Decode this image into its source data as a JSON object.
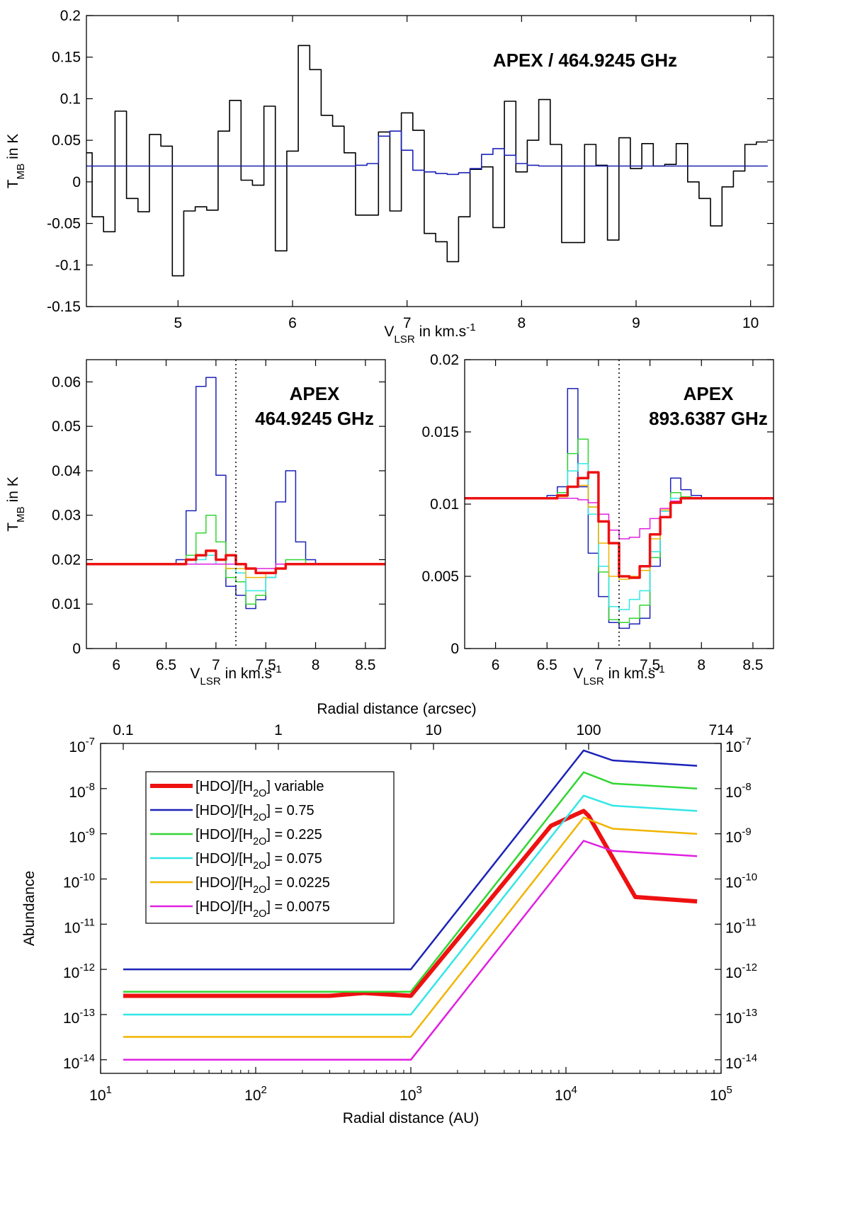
{
  "chart_data": [
    {
      "id": "top",
      "type": "line",
      "step": true,
      "title": "APEX / 464.9245 GHz",
      "xlabel": "V_LSR in km.s^-1",
      "ylabel": "T_MB in K",
      "xlim": [
        4.2,
        10.2
      ],
      "ylim": [
        -0.15,
        0.2
      ],
      "xticks": [
        5,
        6,
        7,
        8,
        9,
        10
      ],
      "xtick_labels": [
        "5",
        "6",
        "7",
        "8",
        "9",
        "10"
      ],
      "yticks": [
        -0.15,
        -0.1,
        -0.05,
        0,
        0.05,
        0.1,
        0.15,
        0.2
      ],
      "ytick_labels": [
        "-0.15",
        "-0.1",
        "-0.05",
        "0",
        "0.05",
        "0.1",
        "0.15",
        "0.2"
      ],
      "grid": false,
      "series": [
        {
          "color": "#000000",
          "x": [
            4.15,
            4.25,
            4.35,
            4.45,
            4.55,
            4.65,
            4.75,
            4.85,
            4.95,
            5.05,
            5.15,
            5.25,
            5.35,
            5.45,
            5.55,
            5.65,
            5.75,
            5.85,
            5.95,
            6.05,
            6.15,
            6.25,
            6.35,
            6.45,
            6.55,
            6.65,
            6.75,
            6.85,
            6.95,
            7.05,
            7.15,
            7.25,
            7.35,
            7.45,
            7.55,
            7.65,
            7.75,
            7.85,
            7.95,
            8.05,
            8.15,
            8.25,
            8.35,
            8.45,
            8.55,
            8.65,
            8.75,
            8.85,
            8.95,
            9.05,
            9.15,
            9.25,
            9.35,
            9.45,
            9.55,
            9.65,
            9.75,
            9.85,
            9.95,
            10.05,
            10.15
          ],
          "y": [
            0.035,
            -0.042,
            -0.06,
            0.085,
            -0.02,
            -0.036,
            0.057,
            0.043,
            -0.113,
            -0.035,
            -0.03,
            -0.034,
            0.061,
            0.098,
            0.002,
            -0.004,
            0.091,
            -0.083,
            0.037,
            0.164,
            0.135,
            0.08,
            0.067,
            0.035,
            -0.04,
            -0.04,
            0.06,
            -0.035,
            0.083,
            0.062,
            -0.062,
            -0.072,
            -0.096,
            -0.042,
            0.015,
            0.018,
            -0.055,
            0.097,
            0.012,
            0.05,
            0.099,
            0.045,
            -0.073,
            -0.073,
            0.045,
            0.02,
            -0.07,
            0.053,
            0.016,
            0.046,
            0.019,
            0.021,
            0.046,
            0.0,
            -0.02,
            -0.053,
            -0.006,
            0.013,
            0.045,
            0.048,
            0.046
          ]
        },
        {
          "color": "#1c22b8",
          "x": [
            4.15,
            4.25,
            4.35,
            4.45,
            4.55,
            4.65,
            4.75,
            4.85,
            4.95,
            5.05,
            5.15,
            5.25,
            5.35,
            5.45,
            5.55,
            5.65,
            5.75,
            5.85,
            5.95,
            6.05,
            6.15,
            6.25,
            6.35,
            6.45,
            6.55,
            6.65,
            6.75,
            6.85,
            6.95,
            7.05,
            7.15,
            7.25,
            7.35,
            7.45,
            7.55,
            7.65,
            7.75,
            7.85,
            7.95,
            8.05,
            8.15,
            8.25,
            8.35,
            8.45,
            8.55,
            8.65,
            8.75,
            8.85,
            8.95,
            9.05,
            9.15,
            9.25,
            9.35,
            9.45,
            9.55,
            9.65,
            9.75,
            9.85,
            9.95,
            10.05,
            10.15
          ],
          "y": [
            0.019,
            0.019,
            0.019,
            0.019,
            0.019,
            0.019,
            0.019,
            0.019,
            0.019,
            0.019,
            0.019,
            0.019,
            0.019,
            0.019,
            0.019,
            0.019,
            0.019,
            0.019,
            0.019,
            0.019,
            0.019,
            0.019,
            0.019,
            0.019,
            0.02,
            0.022,
            0.055,
            0.061,
            0.038,
            0.014,
            0.012,
            0.01,
            0.009,
            0.011,
            0.016,
            0.033,
            0.04,
            0.032,
            0.022,
            0.02,
            0.019,
            0.019,
            0.019,
            0.019,
            0.019,
            0.019,
            0.019,
            0.019,
            0.019,
            0.019,
            0.019,
            0.019,
            0.019,
            0.019,
            0.019,
            0.019,
            0.019,
            0.019,
            0.019,
            0.019,
            0.019
          ]
        }
      ]
    },
    {
      "id": "midleft",
      "type": "line",
      "step": true,
      "annotation": [
        "APEX",
        "464.9245 GHz"
      ],
      "xlabel": "V_LSR in km.s^-1",
      "ylabel": "T_MB in K",
      "xlim": [
        5.7,
        8.7
      ],
      "ylim": [
        0,
        0.065
      ],
      "xticks": [
        6,
        6.5,
        7,
        7.5,
        8,
        8.5
      ],
      "xtick_labels": [
        "6",
        "6.5",
        "7",
        "7.5",
        "8",
        "8.5"
      ],
      "yticks": [
        0,
        0.01,
        0.02,
        0.03,
        0.04,
        0.05,
        0.06
      ],
      "ytick_labels": [
        "0",
        "0.01",
        "0.02",
        "0.03",
        "0.04",
        "0.05",
        "0.06"
      ],
      "vline": 7.2,
      "grid": false,
      "series": [
        {
          "color": "#1c22b8",
          "width": 1.5,
          "x": [
            5.7,
            6.6,
            6.7,
            6.8,
            6.9,
            7.0,
            7.1,
            7.2,
            7.3,
            7.4,
            7.5,
            7.6,
            7.7,
            7.8,
            7.9,
            8.0,
            8.7
          ],
          "y": [
            0.019,
            0.02,
            0.031,
            0.059,
            0.061,
            0.039,
            0.014,
            0.012,
            0.009,
            0.011,
            0.016,
            0.033,
            0.04,
            0.024,
            0.02,
            0.019,
            0.019
          ]
        },
        {
          "color": "#33d633",
          "width": 1.5,
          "x": [
            5.7,
            6.6,
            6.7,
            6.8,
            6.9,
            7.0,
            7.1,
            7.2,
            7.3,
            7.4,
            7.5,
            7.6,
            7.7,
            7.8,
            7.9,
            8.0,
            8.7
          ],
          "y": [
            0.019,
            0.019,
            0.021,
            0.026,
            0.03,
            0.024,
            0.016,
            0.015,
            0.01,
            0.012,
            0.016,
            0.019,
            0.02,
            0.02,
            0.019,
            0.019,
            0.019
          ]
        },
        {
          "color": "#33e6e6",
          "width": 1.5,
          "x": [
            5.7,
            6.6,
            6.7,
            6.8,
            6.9,
            7.0,
            7.1,
            7.2,
            7.3,
            7.4,
            7.5,
            7.6,
            7.7,
            7.8,
            7.9,
            8.0,
            8.7
          ],
          "y": [
            0.019,
            0.019,
            0.019,
            0.02,
            0.021,
            0.019,
            0.018,
            0.017,
            0.013,
            0.013,
            0.016,
            0.019,
            0.019,
            0.019,
            0.019,
            0.019,
            0.019
          ]
        },
        {
          "color": "#f0b400",
          "width": 1.5,
          "x": [
            5.7,
            6.6,
            6.7,
            6.8,
            6.9,
            7.0,
            7.1,
            7.2,
            7.3,
            7.4,
            7.5,
            7.6,
            7.7,
            7.8,
            7.9,
            8.0,
            8.7
          ],
          "y": [
            0.019,
            0.019,
            0.019,
            0.019,
            0.019,
            0.019,
            0.018,
            0.018,
            0.016,
            0.016,
            0.017,
            0.018,
            0.019,
            0.019,
            0.019,
            0.019,
            0.019
          ]
        },
        {
          "color": "#e020e0",
          "width": 1.5,
          "x": [
            5.7,
            6.6,
            6.7,
            6.8,
            6.9,
            7.0,
            7.1,
            7.2,
            7.3,
            7.4,
            7.5,
            7.6,
            7.7,
            7.8,
            7.9,
            8.0,
            8.7
          ],
          "y": [
            0.019,
            0.019,
            0.019,
            0.019,
            0.019,
            0.019,
            0.019,
            0.019,
            0.018,
            0.018,
            0.018,
            0.019,
            0.019,
            0.019,
            0.019,
            0.019,
            0.019
          ]
        },
        {
          "color": "#ee1111",
          "width": 3.5,
          "x": [
            5.7,
            6.6,
            6.7,
            6.8,
            6.9,
            7.0,
            7.1,
            7.2,
            7.3,
            7.4,
            7.5,
            7.6,
            7.7,
            7.8,
            7.9,
            8.0,
            8.7
          ],
          "y": [
            0.019,
            0.019,
            0.02,
            0.021,
            0.022,
            0.02,
            0.021,
            0.019,
            0.018,
            0.017,
            0.017,
            0.018,
            0.019,
            0.019,
            0.019,
            0.019,
            0.019
          ]
        }
      ]
    },
    {
      "id": "midright",
      "type": "line",
      "step": true,
      "annotation": [
        "APEX",
        "893.6387 GHz"
      ],
      "xlabel": "V_LSR in km.s^-1",
      "ylabel": "",
      "xlim": [
        5.7,
        8.7
      ],
      "ylim": [
        0,
        0.02
      ],
      "xticks": [
        6,
        6.5,
        7,
        7.5,
        8,
        8.5
      ],
      "xtick_labels": [
        "6",
        "6.5",
        "7",
        "7.5",
        "8",
        "8.5"
      ],
      "yticks": [
        0,
        0.005,
        0.01,
        0.015,
        0.02
      ],
      "ytick_labels": [
        "0",
        "0.005",
        "0.01",
        "0.015",
        "0.02"
      ],
      "vline": 7.2,
      "grid": false,
      "series": [
        {
          "color": "#1c22b8",
          "width": 1.5,
          "x": [
            5.7,
            6.5,
            6.6,
            6.7,
            6.8,
            6.9,
            7.0,
            7.1,
            7.2,
            7.3,
            7.4,
            7.5,
            7.6,
            7.7,
            7.8,
            7.9,
            8.0,
            8.7
          ],
          "y": [
            0.0104,
            0.0106,
            0.0112,
            0.018,
            0.0112,
            0.0066,
            0.0036,
            0.0018,
            0.0014,
            0.0017,
            0.0021,
            0.0057,
            0.0096,
            0.0118,
            0.011,
            0.0106,
            0.0104,
            0.0104
          ]
        },
        {
          "color": "#33d633",
          "width": 1.5,
          "x": [
            5.7,
            6.5,
            6.6,
            6.7,
            6.8,
            6.9,
            7.0,
            7.1,
            7.2,
            7.3,
            7.4,
            7.5,
            7.6,
            7.7,
            7.8,
            7.9,
            8.0,
            8.7
          ],
          "y": [
            0.0104,
            0.0104,
            0.0108,
            0.0135,
            0.0145,
            0.0098,
            0.0053,
            0.002,
            0.0018,
            0.0021,
            0.003,
            0.0063,
            0.0095,
            0.0108,
            0.0105,
            0.0104,
            0.0104,
            0.0104
          ]
        },
        {
          "color": "#33e6e6",
          "width": 1.5,
          "x": [
            5.7,
            6.5,
            6.6,
            6.7,
            6.8,
            6.9,
            7.0,
            7.1,
            7.2,
            7.3,
            7.4,
            7.5,
            7.6,
            7.7,
            7.8,
            7.9,
            8.0,
            8.7
          ],
          "y": [
            0.0104,
            0.0104,
            0.0106,
            0.0123,
            0.0128,
            0.0093,
            0.0057,
            0.0029,
            0.0027,
            0.0034,
            0.004,
            0.0067,
            0.0095,
            0.0104,
            0.0104,
            0.0104,
            0.0104,
            0.0104
          ]
        },
        {
          "color": "#f0b400",
          "width": 1.5,
          "x": [
            5.7,
            6.5,
            6.6,
            6.7,
            6.8,
            6.9,
            7.0,
            7.1,
            7.2,
            7.3,
            7.4,
            7.5,
            7.6,
            7.7,
            7.8,
            7.9,
            8.0,
            8.7
          ],
          "y": [
            0.0104,
            0.0104,
            0.0105,
            0.0112,
            0.0113,
            0.0098,
            0.0073,
            0.005,
            0.0048,
            0.005,
            0.0054,
            0.0076,
            0.0096,
            0.0102,
            0.0104,
            0.0104,
            0.0104,
            0.0104
          ]
        },
        {
          "color": "#e020e0",
          "width": 1.5,
          "x": [
            5.7,
            6.5,
            6.6,
            6.7,
            6.8,
            6.9,
            7.0,
            7.1,
            7.2,
            7.3,
            7.4,
            7.5,
            7.6,
            7.7,
            7.8,
            7.9,
            8.0,
            8.7
          ],
          "y": [
            0.0104,
            0.0104,
            0.0104,
            0.0104,
            0.0103,
            0.0101,
            0.0093,
            0.0082,
            0.0076,
            0.0077,
            0.0083,
            0.009,
            0.0097,
            0.0102,
            0.0104,
            0.0104,
            0.0104,
            0.0104
          ]
        },
        {
          "color": "#ee1111",
          "width": 3.5,
          "x": [
            5.7,
            6.5,
            6.6,
            6.7,
            6.8,
            6.9,
            7.0,
            7.1,
            7.2,
            7.3,
            7.4,
            7.5,
            7.6,
            7.7,
            7.8,
            7.9,
            8.0,
            8.7
          ],
          "y": [
            0.0104,
            0.0104,
            0.0106,
            0.0112,
            0.0118,
            0.0122,
            0.0088,
            0.0073,
            0.005,
            0.0049,
            0.0057,
            0.0079,
            0.0091,
            0.0101,
            0.0104,
            0.0104,
            0.0104,
            0.0104
          ]
        }
      ]
    },
    {
      "id": "bottom",
      "type": "line",
      "log_x": true,
      "log_y": true,
      "xlabel": "Radial distance (AU)",
      "x2label": "Radial distance (arcsec)",
      "ylabel": "Abundance",
      "xlim": [
        10,
        100000
      ],
      "ylim": [
        5e-15,
        1e-07
      ],
      "xticks": [
        10,
        100,
        1000,
        10000,
        100000
      ],
      "xtick_labels": [
        "10^1",
        "10^2",
        "10^3",
        "10^4",
        "10^5"
      ],
      "x2ticks_au": [
        14,
        140,
        1400,
        14000,
        100000
      ],
      "x2tick_labels": [
        "0.1",
        "1",
        "10",
        "100",
        "714"
      ],
      "yticks": [
        1e-14,
        1e-13,
        1e-12,
        1e-11,
        1e-10,
        1e-09,
        1e-08,
        1e-07
      ],
      "ytick_labels": [
        "10^-14",
        "10^-13",
        "10^-12",
        "10^-11",
        "10^-10",
        "10^-9",
        "10^-8",
        "10^-7"
      ],
      "legend_position": "upper-left",
      "grid": false,
      "series": [
        {
          "name": "[HDO]/[H_2O] variable",
          "color": "#ee1111",
          "width": 6,
          "x": [
            14,
            300,
            500,
            1000,
            8000,
            13000,
            14000,
            28000,
            70000
          ],
          "y": [
            2.6e-13,
            2.6e-13,
            3e-13,
            2.6e-13,
            1.5e-09,
            3.2e-09,
            2.5e-09,
            4e-11,
            3.2e-11
          ]
        },
        {
          "name": "[HDO]/[H_2O] = 0.75",
          "color": "#1c22b8",
          "width": 2.5,
          "x": [
            14,
            1000,
            13000,
            20000,
            70000
          ],
          "y": [
            1e-12,
            1e-12,
            7e-08,
            4.2e-08,
            3.2e-08
          ]
        },
        {
          "name": "[HDO]/[H_2O] = 0.225",
          "color": "#33d633",
          "width": 2.5,
          "x": [
            14,
            1000,
            13000,
            20000,
            70000
          ],
          "y": [
            3.2e-13,
            3.2e-13,
            2.3e-08,
            1.3e-08,
            1e-08
          ]
        },
        {
          "name": "[HDO]/[H_2O] = 0.075",
          "color": "#33e6e6",
          "width": 2.5,
          "x": [
            14,
            1000,
            13000,
            20000,
            70000
          ],
          "y": [
            1e-13,
            1e-13,
            7e-09,
            4.2e-09,
            3.2e-09
          ]
        },
        {
          "name": "[HDO]/[H_2O] = 0.0225",
          "color": "#f0b400",
          "width": 2.5,
          "x": [
            14,
            1000,
            13000,
            20000,
            70000
          ],
          "y": [
            3.2e-14,
            3.2e-14,
            2.3e-09,
            1.3e-09,
            1e-09
          ]
        },
        {
          "name": "[HDO]/[H_2O] = 0.0075",
          "color": "#e020e0",
          "width": 2.5,
          "x": [
            14,
            1000,
            13000,
            20000,
            70000
          ],
          "y": [
            1e-14,
            1e-14,
            7e-10,
            4.2e-10,
            3.2e-10
          ]
        }
      ]
    }
  ]
}
